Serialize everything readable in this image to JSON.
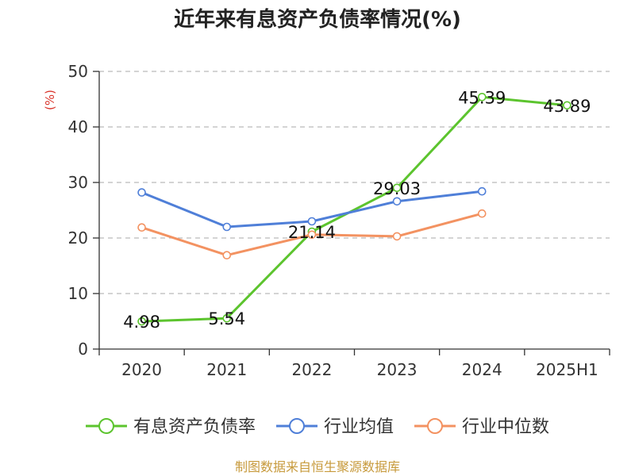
{
  "chart_data": {
    "type": "line",
    "title": "近年来有息资产负债率情况(%)",
    "ylabel": "(%)",
    "ylim": [
      0,
      50
    ],
    "yticks": [
      0,
      10,
      20,
      30,
      40,
      50
    ],
    "grid": true,
    "legend_position": "bottom",
    "categories": [
      "2020",
      "2021",
      "2022",
      "2023",
      "2024",
      "2025H1"
    ],
    "series": [
      {
        "name": "有息资产负债率",
        "color": "#5cc42e",
        "values": [
          4.98,
          5.54,
          21.14,
          29.03,
          45.39,
          43.89
        ],
        "labels": true
      },
      {
        "name": "行业均值",
        "color": "#4f7fd8",
        "values": [
          28.2,
          22.0,
          23.0,
          26.6,
          28.4,
          null
        ],
        "labels": false
      },
      {
        "name": "行业中位数",
        "color": "#f39261",
        "values": [
          21.9,
          16.9,
          20.6,
          20.3,
          24.4,
          null
        ],
        "labels": false
      }
    ],
    "source": "制图数据来自恒生聚源数据库",
    "colors": {
      "unit": "#d9342b",
      "source": "#c79a3c",
      "axis": "#333333",
      "grid": "#bbbbbb"
    }
  }
}
